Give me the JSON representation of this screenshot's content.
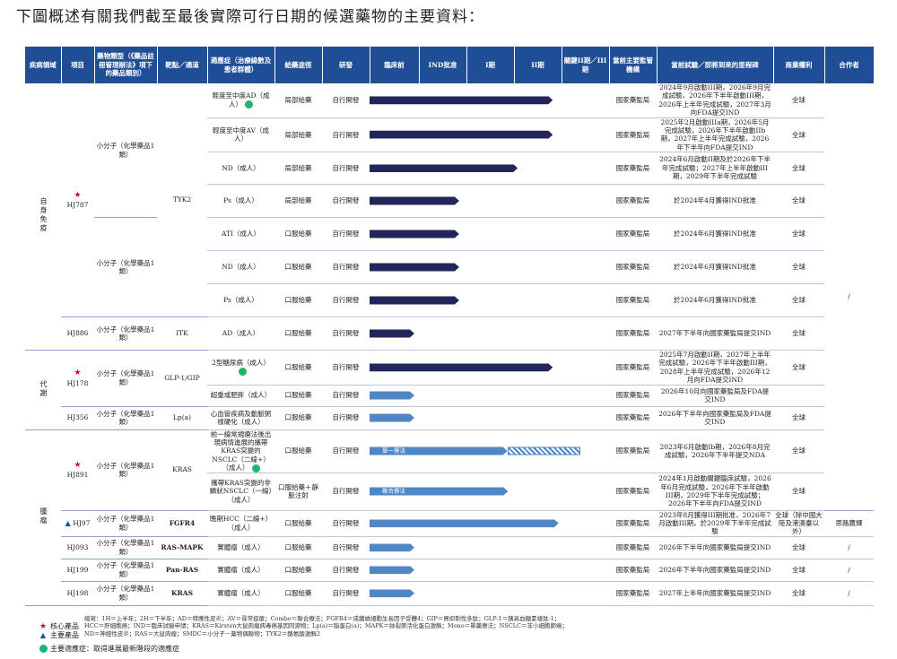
{
  "title": "下圖概述有關我們截至最後實際可行日期的候選藥物的主要資料：",
  "headers": [
    "疾病領域",
    "項目",
    "藥物類型（《藥品註冊管理辦法》項下的藥品類別）",
    "靶點／通道",
    "適應症（治療線數及患者群體）",
    "給藥途徑",
    "研發",
    "臨床前",
    "IND批准",
    "I期",
    "II期",
    "關鍵II期／III期",
    "當前主要監管機構",
    "當前試驗／即將到來的里程碑",
    "商業權利",
    "合作者"
  ],
  "areas": {
    "immune": "自身免疫",
    "metabolic": "代謝",
    "oncology": "腫瘤"
  },
  "programs": {
    "hj787": "HJ787",
    "hj886": "HJ886",
    "hj178": "HJ178",
    "hj356": "HJ356",
    "hj891": "HJ891",
    "hj97": "HJ97",
    "hj093": "HJ093",
    "hj199": "HJ199",
    "hj198": "HJ198"
  },
  "types": {
    "small1": "小分子（化學藥品1類）"
  },
  "targets": {
    "tyk2": "TYK2",
    "itk": "ITK",
    "glp": "GLP-1/GIP",
    "lpa": "Lp(a)",
    "kras": "KRAS",
    "fgfr4": "FGFR4",
    "rasmapk": "RAS-MAPK",
    "panras": "Pan-RAS",
    "krasg12v": "KRAS"
  },
  "rows": [
    {
      "ind": "輕度至中度AD（成人）",
      "route": "局部給藥",
      "dev": "自行開發",
      "reg": "國家藥監局",
      "mile": "2024年9月啟動III期，2026年9月完成試驗，2026年下半年啟動III期，2026年上半年完成試驗，2027年3月向FDA提交IND",
      "rights": "全球"
    },
    {
      "ind": "輕度至中度AV（成人）",
      "route": "局部給藥",
      "dev": "自行開發",
      "reg": "國家藥監局",
      "mile": "2025年2月啟動IIIa期，2026年5月完成試驗，2026年下半年啟動IIb期，2027年上半年完成試驗，2026年下半年向FDA提交IND",
      "rights": "全球"
    },
    {
      "ind": "ND（成人）",
      "route": "局部給藥",
      "dev": "自行開發",
      "reg": "國家藥監局",
      "mile": "2024年6月啟動II期及於2026年下半年完成試驗；2027年上半年啟動III期，2029年下半年完成試驗",
      "rights": "全球"
    },
    {
      "ind": "Ps（成人）",
      "route": "局部給藥",
      "dev": "自行開發",
      "reg": "國家藥監局",
      "mile": "於2024年4月獲得IND批准",
      "rights": "全球"
    },
    {
      "ind": "ATI（成人）",
      "route": "口服給藥",
      "dev": "自行開發",
      "reg": "國家藥監局",
      "mile": "於2024年6月獲得IND批准",
      "rights": "全球"
    },
    {
      "ind": "ND（成人）",
      "route": "口服給藥",
      "dev": "自行開發",
      "reg": "國家藥監局",
      "mile": "於2024年6月獲得IND批准",
      "rights": "全球"
    },
    {
      "ind": "Ps（成人）",
      "route": "口服給藥",
      "dev": "自行開發",
      "reg": "國家藥監局",
      "mile": "於2024年6月獲得IND批准",
      "rights": "全球"
    },
    {
      "ind": "AD（成人）",
      "route": "口服給藥",
      "dev": "自行開發",
      "reg": "國家藥監局",
      "mile": "2027年下半年向國家藥監局提交IND",
      "rights": "全球"
    },
    {
      "ind": "2型糖尿病（成人）",
      "route": "口服給藥",
      "dev": "自行開發",
      "reg": "國家藥監局",
      "mile": "2025年7月啟動II期，2027年上半年完成試驗，2026年下半年啟動III期，2028年上半年完成試驗，2026年12月向FDA提交IND",
      "rights": "全球"
    },
    {
      "ind": "超重或肥胖（成人）",
      "route": "口服給藥",
      "dev": "自行開發",
      "reg": "國家藥監局",
      "mile": "2026年10月向國家藥監局及FDA提交IND",
      "rights": ""
    },
    {
      "ind": "心血管疾病及動脈粥樣硬化（成人）",
      "route": "口服給藥",
      "dev": "自行開發",
      "reg": "國家藥監局",
      "mile": "2026年下半年向國家藥監局及FDA提交IND",
      "rights": "全球"
    },
    {
      "ind": "前一線常規療法後出現病情進展的攜帶KRAS突變的NSCLC（二線+）（成人）",
      "route": "口服給藥",
      "dev": "自行開發",
      "reg": "國家藥監局",
      "mile": "2023年6月啟動Ib期，2026年8月完成試驗，2026年下半年提交NDA",
      "rights": "全球",
      "bar_label": "單一療法"
    },
    {
      "ind": "攜帶KRAS突變的非鱗狀NSCLC（一線）（成人）",
      "route": "口服給藥＋靜脈注射",
      "dev": "自行開發",
      "reg": "國家藥監局",
      "mile": "2024年1月啟動關鍵臨床試驗，2026年6月完成試驗，2026年下半年啟動III期，2029年下半年完成試驗；2026年下半年向FDA提交IND",
      "rights": "全球",
      "bar_label": "聯合療法"
    },
    {
      "ind": "晚期HCC（二線+）（成人）",
      "route": "口服給藥",
      "dev": "自行開發",
      "reg": "國家藥監局",
      "mile": "2023年8月獲得III期批准，2026年7月啟動III期，於2029年下半年完成試驗",
      "rights": "全球（除中國大陸及港澳臺以外）",
      "partner": "思路鷹輝"
    },
    {
      "ind": "實體瘤（成人）",
      "route": "口服給藥",
      "dev": "自行開發",
      "reg": "國家藥監局",
      "mile": "2026年下半年向國家藥監局提交IND",
      "rights": "全球",
      "partner": "/"
    },
    {
      "ind": "實體瘤（成人）",
      "route": "口服給藥",
      "dev": "自行開發",
      "reg": "國家藥監局",
      "mile": "2026年下半年向國家藥監局提交IND",
      "rights": "全球",
      "partner": "/"
    },
    {
      "ind": "實體瘤（成人）",
      "route": "口服給藥",
      "dev": "自行開發",
      "reg": "國家藥監局",
      "mile": "2027年上半年向國家藥監局提交IND",
      "rights": "全球",
      "partner": "/"
    }
  ],
  "progress": [
    0.94,
    0.94,
    0.76,
    0.46,
    0.46,
    0.46,
    0.46,
    0.23,
    0.94,
    0.23,
    0.23,
    0.74,
    0.71,
    0.97,
    0.23,
    0.23,
    0.23
  ],
  "partner_default": "/",
  "legend": {
    "core": "核心產品",
    "main": "主要產品",
    "green": "主要適應症：取得進展最新階段的適應症",
    "abbr": "縮寫：1H＝上半年；2H＝下半年；AD＝特應性皮炎；AV＝尋常痤瘡；Combo＝聯合療法；FGFR4＝成纖維細胞生長因子受體4；GIP＝胃抑制性多肽；GLP-1＝胰高血糖素樣肽-1；HCC＝肝細胞癌；IND＝臨床試驗申請；KRAS＝Kirsten大鼠肉瘤病毒癌基因同源物；Lp(a)＝脂蛋白(a)；MAPK＝絲裂原活化蛋白激酶；Mono＝單藥療法；NSCLC＝非小細胞肺癌；ND＝神經性皮炎；RAS＝大鼠肉瘤；SMDC＝小分子－藥物偶聯物；TYK2＝酪氨酸激酶2"
  }
}
